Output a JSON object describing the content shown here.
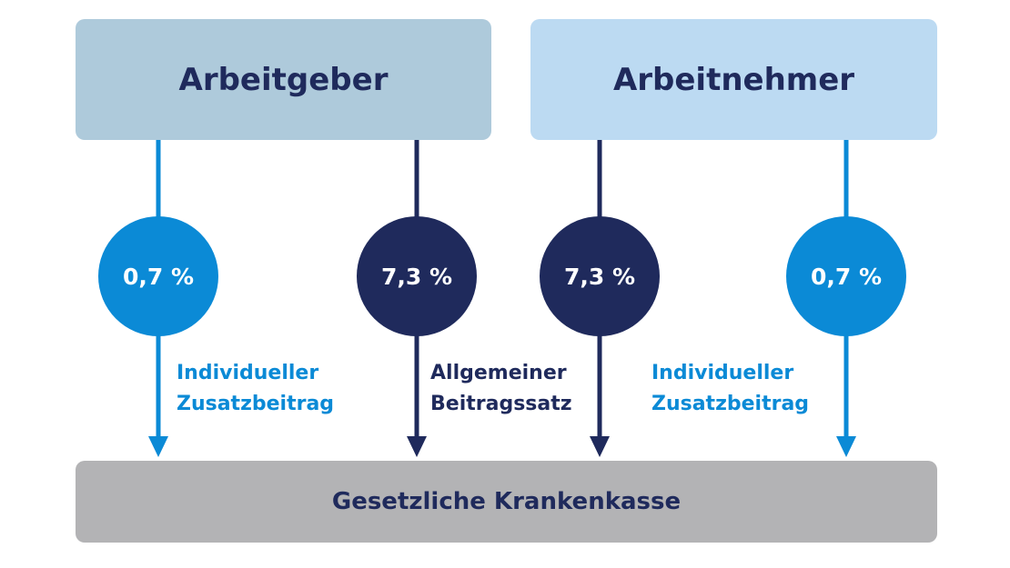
{
  "colors": {
    "employer_box": "#aecadb",
    "employee_box": "#bcdaf2",
    "insurance_box": "#b3b3b5",
    "light_blue": "#0b8ad6",
    "dark_navy": "#1f2a5c",
    "text_dark": "#1f2a5c"
  },
  "parties": {
    "employer": "Arbeitgeber",
    "employee": "Arbeitnehmer"
  },
  "target": "Gesetzliche Krankenkasse",
  "flows": [
    {
      "rate": "0,7 %",
      "kind": "light"
    },
    {
      "rate": "7,3 %",
      "kind": "dark"
    },
    {
      "rate": "7,3 %",
      "kind": "dark"
    },
    {
      "rate": "0,7 %",
      "kind": "light"
    }
  ],
  "labels": {
    "individual": [
      "Individueller",
      "Zusatzbeitrag"
    ],
    "general": [
      "Allgemeiner",
      "Beitragssatz"
    ]
  }
}
